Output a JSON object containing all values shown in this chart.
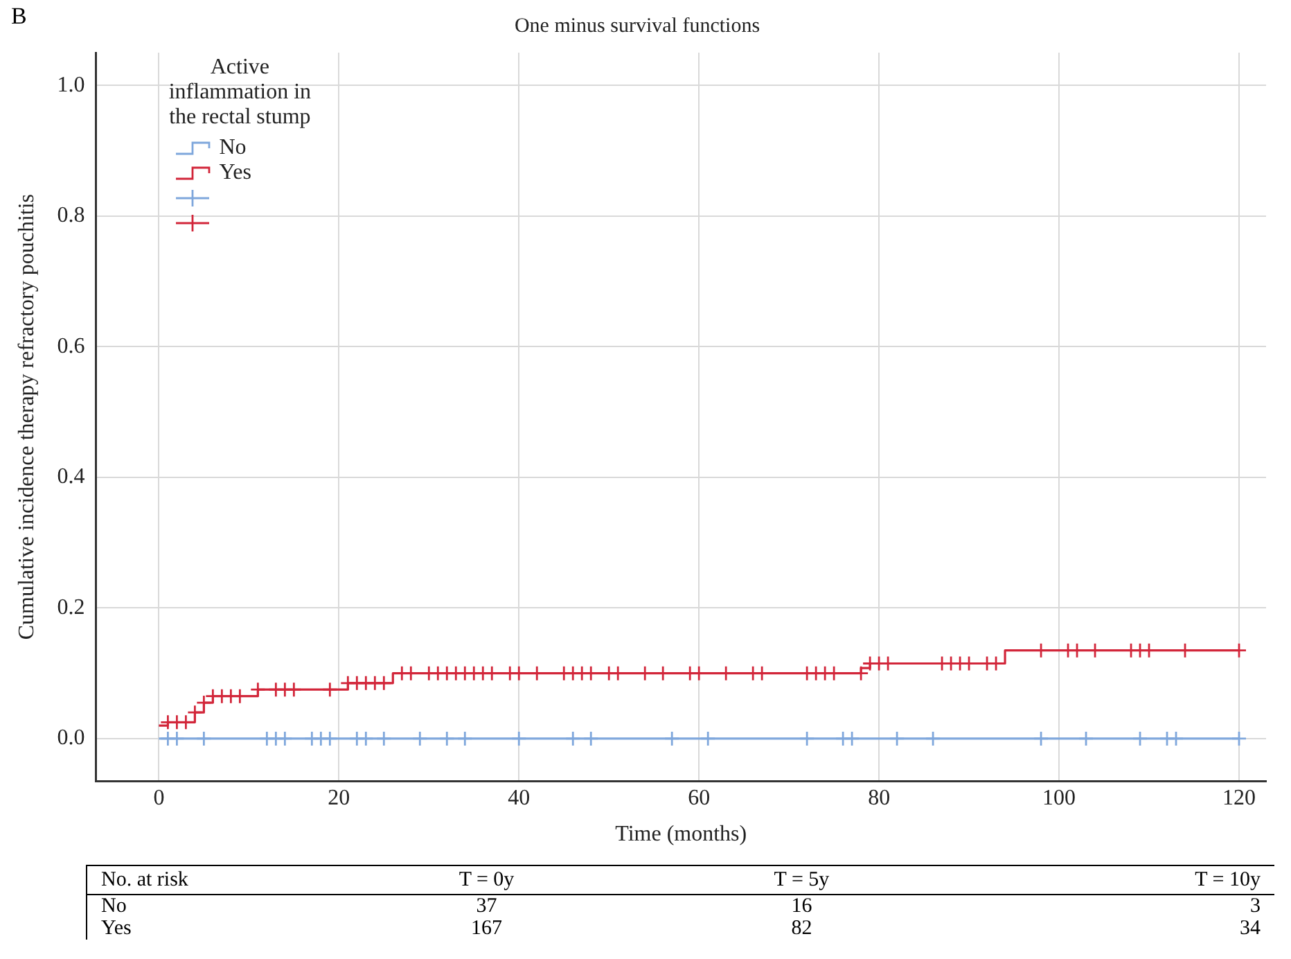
{
  "chart_data": {
    "type": "step",
    "title": "One minus survival functions",
    "xlabel": "Time (months)",
    "ylabel": "Cumulative incidence therapy refractory pouchitis",
    "legend_title": "Active inflammation in the rectal stump",
    "legend": "top left",
    "grid": true,
    "xlim": [
      -7,
      123
    ],
    "xticks": [
      0,
      20,
      40,
      60,
      80,
      100,
      120
    ],
    "ylim": [
      -0.065,
      1.05
    ],
    "yticks": [
      {
        "value": 0,
        "label": "0.0"
      },
      {
        "value": 0.2,
        "label": "0.2"
      },
      {
        "value": 0.4,
        "label": "0.4"
      },
      {
        "value": 0.6,
        "label": "0.6"
      },
      {
        "value": 0.8,
        "label": "0.8"
      },
      {
        "value": 1,
        "label": "1.0"
      }
    ],
    "series": [
      {
        "name": "No",
        "color": "#7fa7dc",
        "x": [
          0,
          120
        ],
        "values": [
          0,
          0
        ]
      },
      {
        "name": "Yes",
        "color": "#d2263a",
        "x": [
          0,
          1,
          4,
          5,
          6,
          11,
          21,
          26,
          78,
          79,
          94,
          120
        ],
        "values": [
          0.02,
          0.025,
          0.04,
          0.055,
          0.065,
          0.075,
          0.085,
          0.1,
          0.108,
          0.115,
          0.135,
          0.135
        ]
      },
      {
        "type": "scatter",
        "marker": "cross",
        "color": "#7fa7dc",
        "x": [
          1,
          2,
          5,
          12,
          13,
          14,
          17,
          18,
          19,
          22,
          23,
          25,
          29,
          32,
          34,
          40,
          46,
          48,
          57,
          61,
          72,
          76,
          77,
          82,
          86,
          98,
          103,
          109,
          112,
          113,
          120
        ],
        "values": [
          0,
          0,
          0,
          0,
          0,
          0,
          0,
          0,
          0,
          0,
          0,
          0,
          0,
          0,
          0,
          0,
          0,
          0,
          0,
          0,
          0,
          0,
          0,
          0,
          0,
          0,
          0,
          0,
          0,
          0,
          0
        ]
      },
      {
        "type": "scatter",
        "marker": "cross",
        "color": "#d2263a",
        "x": [
          1,
          2,
          3,
          4,
          5,
          6,
          7,
          8,
          9,
          11,
          13,
          14,
          15,
          19,
          21,
          22,
          23,
          24,
          25,
          27,
          28,
          30,
          31,
          32,
          33,
          34,
          35,
          36,
          37,
          39,
          40,
          42,
          45,
          46,
          47,
          48,
          50,
          51,
          54,
          56,
          59,
          60,
          63,
          66,
          67,
          72,
          73,
          74,
          75,
          78,
          79,
          80,
          81,
          87,
          88,
          89,
          90,
          92,
          93,
          98,
          101,
          102,
          104,
          108,
          109,
          110,
          114,
          120
        ],
        "values": [
          0.025,
          0.025,
          0.025,
          0.04,
          0.055,
          0.065,
          0.065,
          0.065,
          0.065,
          0.075,
          0.075,
          0.075,
          0.075,
          0.075,
          0.085,
          0.085,
          0.085,
          0.085,
          0.085,
          0.1,
          0.1,
          0.1,
          0.1,
          0.1,
          0.1,
          0.1,
          0.1,
          0.1,
          0.1,
          0.1,
          0.1,
          0.1,
          0.1,
          0.1,
          0.1,
          0.1,
          0.1,
          0.1,
          0.1,
          0.1,
          0.1,
          0.1,
          0.1,
          0.1,
          0.1,
          0.1,
          0.1,
          0.1,
          0.1,
          0.1,
          0.115,
          0.115,
          0.115,
          0.115,
          0.115,
          0.115,
          0.115,
          0.115,
          0.115,
          0.135,
          0.135,
          0.135,
          0.135,
          0.135,
          0.135,
          0.135,
          0.135,
          0.135
        ]
      }
    ],
    "annotations": [
      "B",
      "No. at risk",
      "T = 0y",
      "T = 5y",
      "T = 10y",
      "No",
      "37",
      "16",
      "3",
      "Yes",
      "167",
      "82",
      "34"
    ]
  }
}
